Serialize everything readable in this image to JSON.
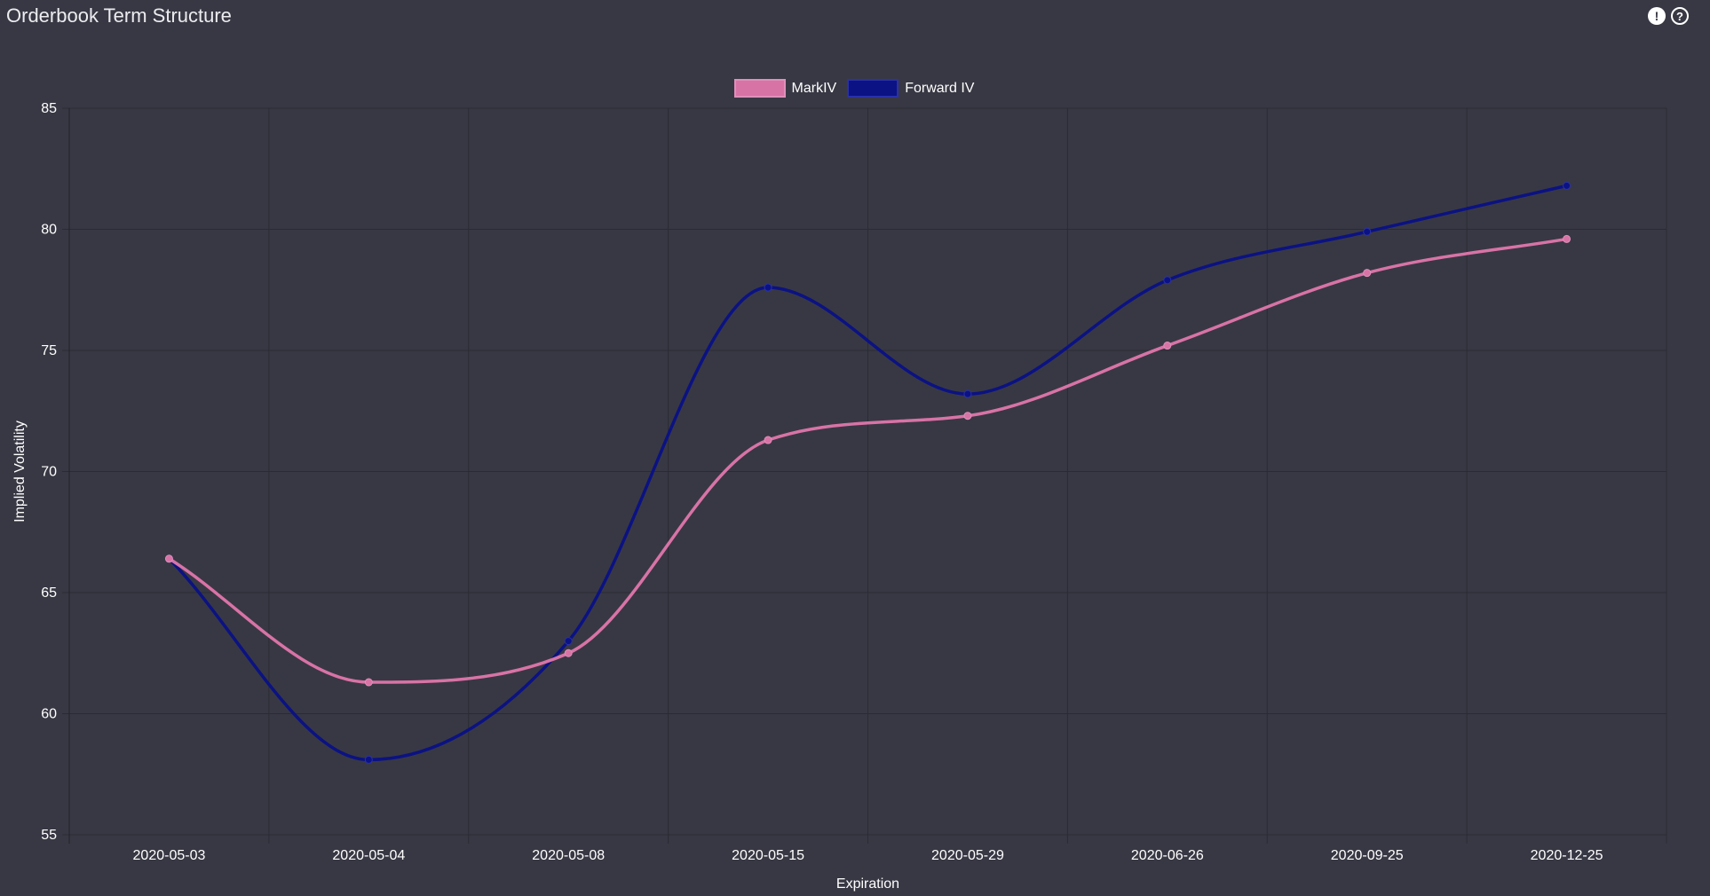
{
  "header": {
    "title": "Orderbook Term Structure",
    "alert_icon": "exclamation-icon",
    "help_icon": "question-icon",
    "alert_glyph": "!",
    "help_glyph": "?"
  },
  "chart_data": {
    "type": "line",
    "title": "",
    "xlabel": "Expiration",
    "ylabel": "Implied Volatility",
    "categories": [
      "2020-05-03",
      "2020-05-04",
      "2020-05-08",
      "2020-05-15",
      "2020-05-29",
      "2020-06-26",
      "2020-09-25",
      "2020-12-25"
    ],
    "ylim": [
      55,
      85
    ],
    "yticks": [
      55,
      60,
      65,
      70,
      75,
      80,
      85
    ],
    "grid": true,
    "legend_position": "top-center",
    "series": [
      {
        "name": "MarkIV",
        "color": "#d873a6",
        "values": [
          66.4,
          61.3,
          62.5,
          71.3,
          72.3,
          75.2,
          78.2,
          79.6
        ]
      },
      {
        "name": "Forward IV",
        "color": "#0b1283",
        "values": [
          66.4,
          58.1,
          63.0,
          77.6,
          73.2,
          77.9,
          79.9,
          81.8
        ]
      }
    ]
  }
}
